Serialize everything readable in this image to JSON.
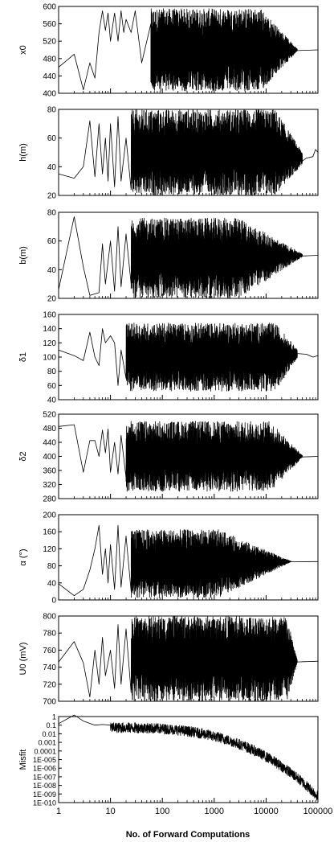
{
  "figure": {
    "xlabel": "No. of Forward Computations",
    "x_ticks": [
      "1",
      "10",
      "100",
      "1000",
      "10000",
      "100000"
    ]
  },
  "chart_data": [
    {
      "type": "line",
      "ylabel": "x0",
      "ylim": [
        400,
        600
      ],
      "yticks": [
        "400",
        "440",
        "480",
        "520",
        "560",
        "600"
      ],
      "xlim": [
        1,
        100000
      ],
      "xscale": "log",
      "series": [
        {
          "points": [
            [
              1,
              460
            ],
            [
              2,
              490
            ],
            [
              3,
              408
            ],
            [
              4,
              470
            ],
            [
              5,
              435
            ],
            [
              6,
              540
            ],
            [
              7,
              590
            ],
            [
              8,
              545
            ],
            [
              9,
              585
            ],
            [
              10,
              520
            ],
            [
              12,
              585
            ],
            [
              14,
              520
            ],
            [
              16,
              590
            ],
            [
              18,
              540
            ],
            [
              20,
              570
            ],
            [
              25,
              540
            ],
            [
              30,
              590
            ],
            [
              40,
              470
            ],
            [
              60,
              560
            ]
          ],
          "noise": {
            "x_start": 60,
            "x_end": 40000,
            "center": 500,
            "amp": 95,
            "amp_end": 2,
            "decay_start": 8000,
            "final": 500
          }
        }
      ]
    },
    {
      "type": "line",
      "ylabel": "h(m)",
      "ylim": [
        20,
        80
      ],
      "yticks": [
        "20",
        "40",
        "60",
        "80"
      ],
      "xlim": [
        1,
        100000
      ],
      "xscale": "log",
      "series": [
        {
          "points": [
            [
              1,
              35
            ],
            [
              2,
              32
            ],
            [
              3,
              40
            ],
            [
              4,
              72
            ],
            [
              5,
              33
            ],
            [
              6,
              70
            ],
            [
              7,
              35
            ],
            [
              8,
              60
            ],
            [
              9,
              30
            ],
            [
              10,
              70
            ],
            [
              12,
              26
            ],
            [
              14,
              75
            ],
            [
              16,
              30
            ],
            [
              20,
              60
            ],
            [
              25,
              24
            ]
          ],
          "noise": {
            "x_start": 25,
            "x_end": 50000,
            "center": 50,
            "amp": 30,
            "amp_end": 4,
            "decay_start": 15000,
            "final": 46
          },
          "tail": [
            [
              50000,
              44
            ],
            [
              60000,
              46
            ],
            [
              80000,
              47
            ],
            [
              90000,
              52
            ],
            [
              100000,
              50
            ]
          ]
        }
      ]
    },
    {
      "type": "line",
      "ylabel": "b(m)",
      "ylim": [
        20,
        80
      ],
      "yticks": [
        "20",
        "40",
        "60",
        "80"
      ],
      "xlim": [
        1,
        100000
      ],
      "xscale": "log",
      "series": [
        {
          "points": [
            [
              1,
              26
            ],
            [
              2,
              77
            ],
            [
              3,
              42
            ],
            [
              4,
              22
            ],
            [
              6,
              24
            ],
            [
              7,
              58
            ],
            [
              8,
              30
            ],
            [
              10,
              60
            ],
            [
              12,
              25
            ],
            [
              14,
              70
            ],
            [
              16,
              28
            ],
            [
              20,
              65
            ],
            [
              25,
              30
            ]
          ],
          "noise": {
            "x_start": 25,
            "x_end": 50000,
            "center": 48,
            "amp": 28,
            "amp_end": 1,
            "decay_start": 3000,
            "final": 50
          }
        }
      ]
    },
    {
      "type": "line",
      "ylabel": "δ1",
      "ylim": [
        40,
        160
      ],
      "yticks": [
        "40",
        "60",
        "80",
        "100",
        "120",
        "140",
        "160"
      ],
      "xlim": [
        1,
        100000
      ],
      "xscale": "log",
      "series": [
        {
          "points": [
            [
              1,
              110
            ],
            [
              2,
              102
            ],
            [
              3,
              95
            ],
            [
              4,
              135
            ],
            [
              5,
              100
            ],
            [
              6,
              88
            ],
            [
              7,
              140
            ],
            [
              8,
              120
            ],
            [
              10,
              130
            ],
            [
              12,
              120
            ],
            [
              14,
              60
            ],
            [
              16,
              110
            ],
            [
              20,
              70
            ]
          ],
          "noise": {
            "x_start": 20,
            "x_end": 40000,
            "center": 100,
            "amp": 48,
            "amp_end": 6,
            "decay_start": 15000,
            "final": 105
          },
          "tail": [
            [
              40000,
              105
            ],
            [
              60000,
              104
            ],
            [
              80000,
              100
            ],
            [
              100000,
              102
            ]
          ]
        }
      ]
    },
    {
      "type": "line",
      "ylabel": "δ2",
      "ylim": [
        280,
        520
      ],
      "yticks": [
        "280",
        "320",
        "360",
        "400",
        "440",
        "480",
        "520"
      ],
      "xlim": [
        1,
        100000
      ],
      "xscale": "log",
      "series": [
        {
          "points": [
            [
              1,
              485
            ],
            [
              2,
              490
            ],
            [
              3,
              355
            ],
            [
              4,
              445
            ],
            [
              5,
              445
            ],
            [
              6,
              400
            ],
            [
              7,
              475
            ],
            [
              8,
              410
            ],
            [
              9,
              478
            ],
            [
              10,
              355
            ],
            [
              12,
              440
            ],
            [
              14,
              350
            ],
            [
              16,
              460
            ],
            [
              20,
              340
            ]
          ],
          "noise": {
            "x_start": 20,
            "x_end": 50000,
            "center": 400,
            "amp": 100,
            "amp_end": 3,
            "decay_start": 12000,
            "final": 400
          }
        }
      ]
    },
    {
      "type": "line",
      "ylabel": "α (°)",
      "ylim": [
        0,
        200
      ],
      "yticks": [
        "0",
        "40",
        "80",
        "120",
        "160",
        "200"
      ],
      "xlim": [
        1,
        100000
      ],
      "xscale": "log",
      "series": [
        {
          "points": [
            [
              1,
              38
            ],
            [
              2,
              10
            ],
            [
              3,
              25
            ],
            [
              4,
              70
            ],
            [
              5,
              120
            ],
            [
              6,
              175
            ],
            [
              7,
              60
            ],
            [
              8,
              120
            ],
            [
              9,
              40
            ],
            [
              10,
              130
            ],
            [
              12,
              25
            ],
            [
              14,
              175
            ],
            [
              16,
              30
            ],
            [
              20,
              150
            ],
            [
              25,
              20
            ]
          ],
          "noise": {
            "x_start": 25,
            "x_end": 30000,
            "center": 85,
            "amp": 80,
            "amp_end": 1,
            "decay_start": 1200,
            "final": 90
          }
        }
      ]
    },
    {
      "type": "line",
      "ylabel": "U0 (mV)",
      "ylim": [
        700,
        800
      ],
      "yticks": [
        "700",
        "720",
        "740",
        "760",
        "780",
        "800"
      ],
      "xlim": [
        1,
        100000
      ],
      "xscale": "log",
      "series": [
        {
          "points": [
            [
              1,
              746
            ],
            [
              2,
              770
            ],
            [
              3,
              745
            ],
            [
              4,
              705
            ],
            [
              5,
              760
            ],
            [
              6,
              720
            ],
            [
              7,
              775
            ],
            [
              8,
              730
            ],
            [
              10,
              760
            ],
            [
              12,
              715
            ],
            [
              14,
              790
            ],
            [
              16,
              720
            ],
            [
              20,
              785
            ],
            [
              25,
              710
            ]
          ],
          "noise": {
            "x_start": 25,
            "x_end": 40000,
            "center": 750,
            "amp": 50,
            "amp_end": 2,
            "decay_start": 25000,
            "final": 747
          }
        }
      ]
    },
    {
      "type": "line",
      "ylabel": "Misfit",
      "yscale": "log",
      "ylim": [
        1e-10,
        1
      ],
      "yticks": [
        "1E-010",
        "1E-009",
        "1E-008",
        "1E-007",
        "1E-006",
        "1E-005",
        "0.0001",
        "0.001",
        "0.01",
        "0.1",
        "1"
      ],
      "xlim": [
        1,
        100000
      ],
      "xscale": "log",
      "series": [
        {
          "points": [
            [
              1,
              0.15
            ],
            [
              2,
              1.5
            ],
            [
              3,
              0.3
            ],
            [
              5,
              0.1
            ],
            [
              7,
              0.12
            ],
            [
              10,
              0.1
            ]
          ],
          "noise": {
            "x_start": 10,
            "x_end": 100000,
            "center_log": -1.3,
            "amp_log": 0.6,
            "decline": true,
            "final_log": -9.3
          }
        }
      ]
    }
  ]
}
